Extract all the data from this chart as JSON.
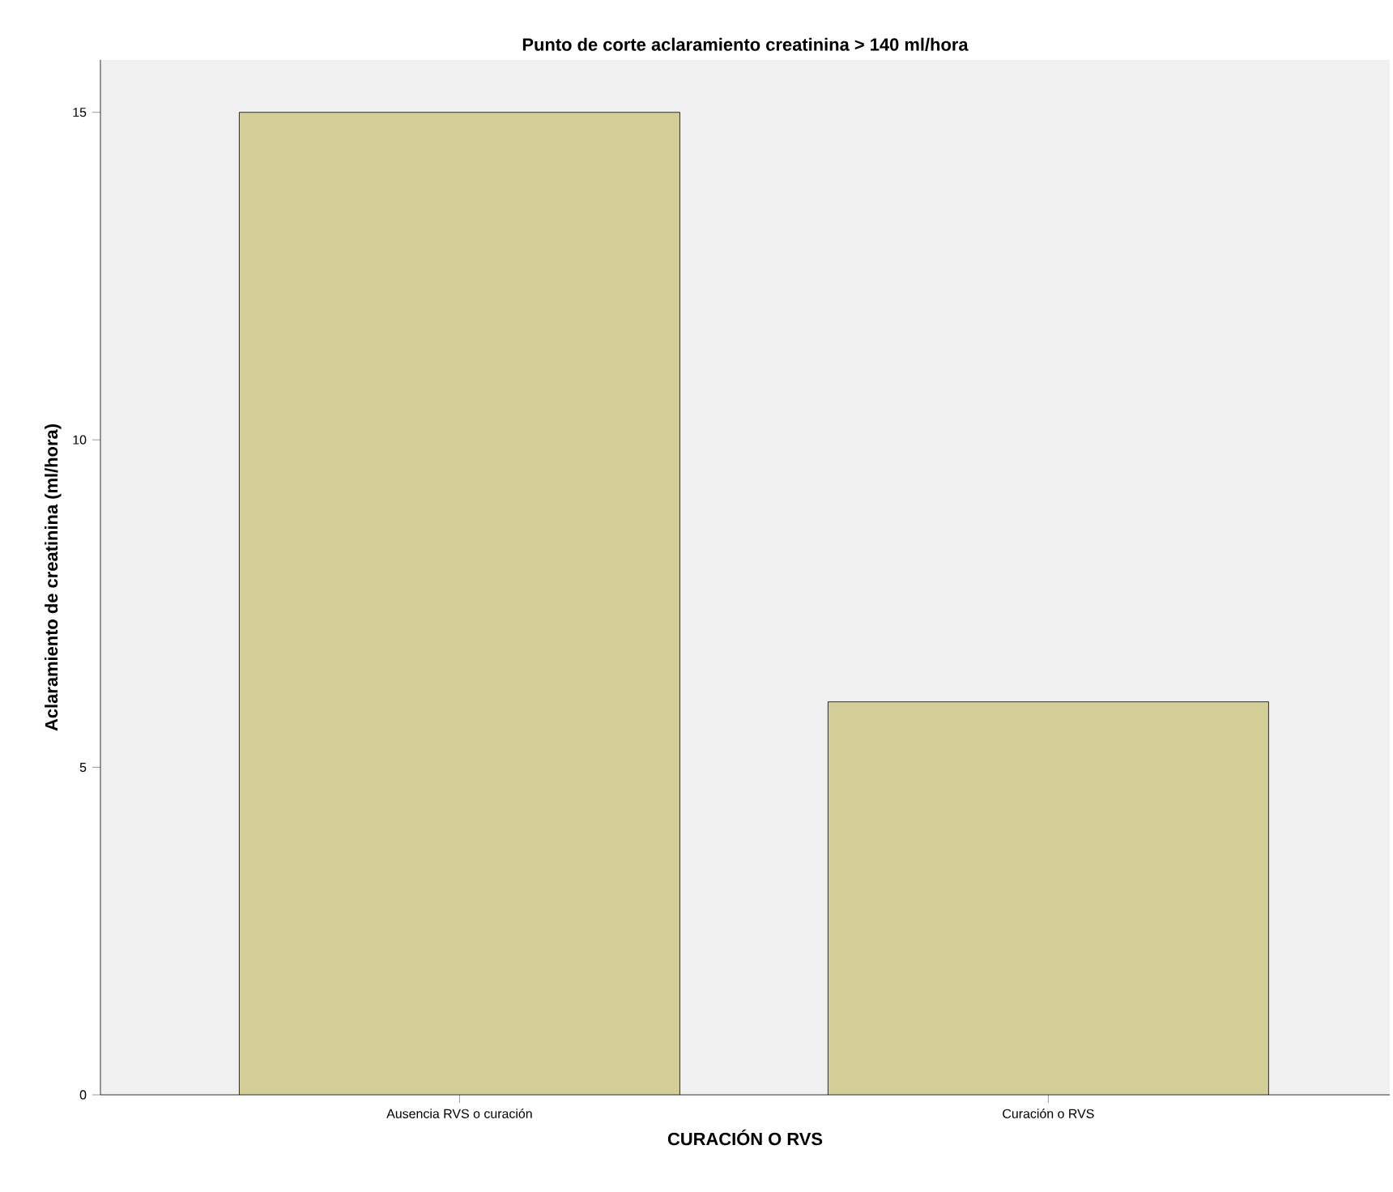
{
  "chart_data": {
    "type": "bar",
    "title": "Punto de corte aclaramiento creatinina > 140 ml/hora",
    "xlabel": "CURACIÓN O RVS",
    "ylabel": "Aclaramiento de creatinina (ml/hora)",
    "categories": [
      "Ausencia RVS o curación",
      "Curación o RVS"
    ],
    "values": [
      15,
      6
    ],
    "color": "#d3ce98",
    "ylim": [
      0,
      15.8
    ],
    "yticks": [
      0,
      5,
      10,
      15
    ],
    "grid": false
  }
}
